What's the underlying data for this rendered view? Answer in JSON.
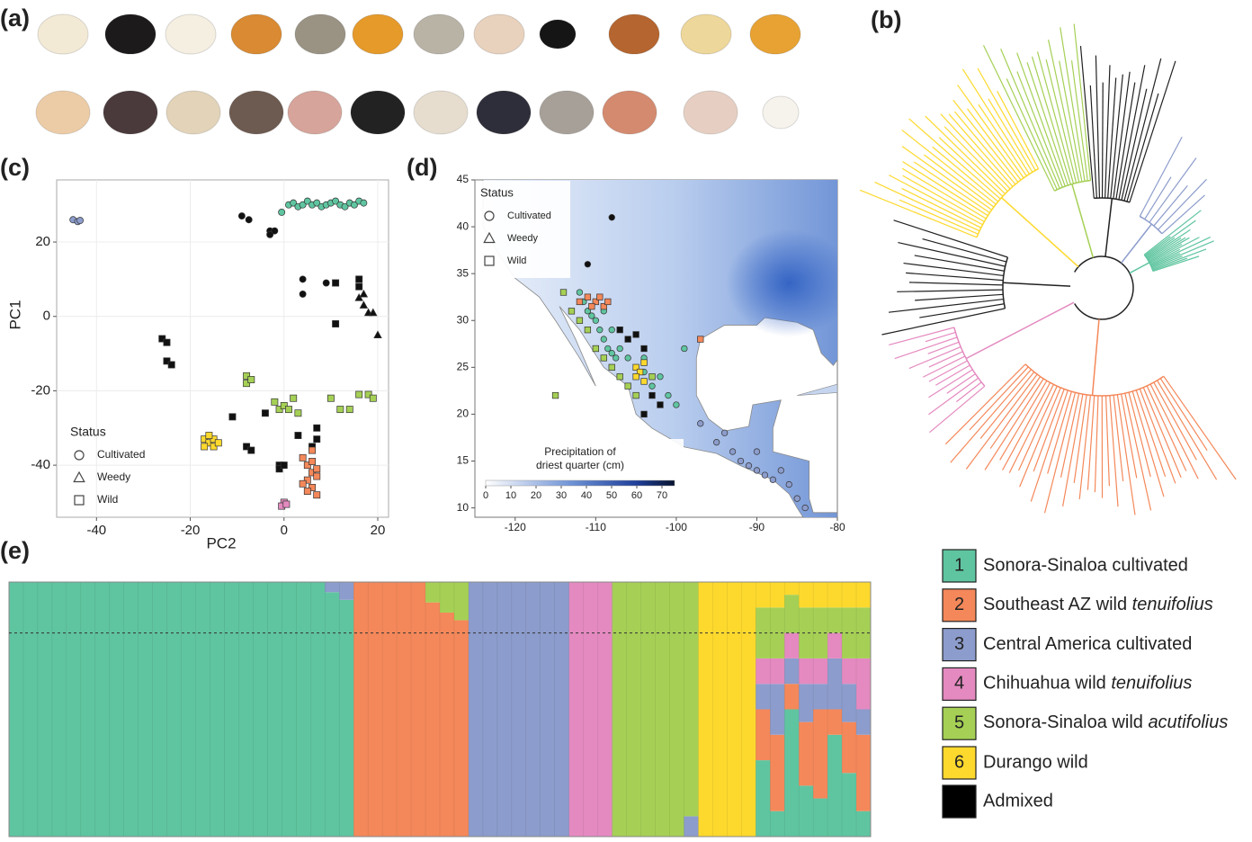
{
  "panels": [
    "(a)",
    "(b)",
    "(c)",
    "(d)",
    "(e)"
  ],
  "chart_data": [
    {
      "type": "scatter",
      "xlabel": "PC2",
      "ylabel": "PC1",
      "xlim": [
        -48.5,
        22.3
      ],
      "ylim": [
        -54,
        36.7
      ],
      "xticks": [
        -40,
        -20,
        0,
        20
      ],
      "yticks": [
        -40,
        -20,
        0,
        20
      ],
      "grid": true,
      "legend": {
        "title": "Status",
        "entries": [
          {
            "label": "Cultivated",
            "marker": "circle"
          },
          {
            "label": "Weedy",
            "marker": "triangle"
          },
          {
            "label": "Wild",
            "marker": "square"
          }
        ]
      },
      "series": [
        {
          "color": "#8c9ccc",
          "marker": "circle",
          "x": [
            -45,
            -44,
            -43.5
          ],
          "values": [
            26,
            25.5,
            25.8
          ]
        },
        {
          "color": "#5fc5a0",
          "marker": "circle",
          "x": [
            -0.5,
            1,
            2,
            3,
            4,
            5,
            6,
            7,
            8,
            9,
            10,
            11,
            12,
            13,
            14,
            15,
            16,
            17
          ],
          "values": [
            28,
            30,
            30.5,
            29.5,
            30,
            31,
            30,
            30.5,
            29.5,
            30,
            30.5,
            31,
            30,
            29.5,
            30.5,
            30,
            31,
            30.5
          ]
        },
        {
          "color": "#111111",
          "marker": "circle",
          "x": [
            -9,
            -7.5,
            -3,
            -3,
            -2,
            4,
            4,
            9
          ],
          "values": [
            27,
            26,
            23,
            22,
            23,
            10,
            6,
            9
          ]
        },
        {
          "color": "#111111",
          "marker": "square",
          "x": [
            -26,
            -25,
            -25,
            -24,
            11,
            11,
            -11,
            -8,
            -7,
            -4,
            -1,
            -1,
            0,
            3,
            6,
            7,
            7,
            16,
            16
          ],
          "values": [
            -6,
            -7,
            -12,
            -13,
            9,
            -2,
            -27,
            -35,
            -36,
            -26,
            -40,
            -41,
            -40,
            -32,
            -35,
            -30,
            -33,
            10,
            8
          ]
        },
        {
          "color": "#111111",
          "marker": "triangle",
          "x": [
            16,
            17,
            18,
            17,
            19,
            20
          ],
          "values": [
            5,
            3,
            1,
            6,
            1,
            -5
          ]
        },
        {
          "color": "#a5d055",
          "marker": "square",
          "x": [
            -8,
            -8,
            -7,
            -2,
            -1,
            0,
            1,
            2,
            3,
            10,
            12,
            14,
            16,
            18,
            19
          ],
          "values": [
            -16,
            -18,
            -17,
            -23,
            -25,
            -24,
            -25,
            -22,
            -26,
            -22,
            -25,
            -25,
            -21,
            -21,
            -22
          ]
        },
        {
          "color": "#fdd92e",
          "marker": "square",
          "x": [
            -17,
            -16,
            -15,
            -15,
            -16,
            -14,
            -17
          ],
          "values": [
            -33,
            -34,
            -33,
            -35,
            -32,
            -34,
            -35
          ]
        },
        {
          "color": "#f4885a",
          "marker": "square",
          "x": [
            4,
            5,
            6,
            5,
            6,
            7,
            5,
            7,
            6,
            4,
            6,
            7
          ],
          "values": [
            -38,
            -40,
            -42,
            -44,
            -46,
            -48,
            -47,
            -43,
            -39,
            -45,
            -36,
            -41
          ]
        },
        {
          "color": "#e48ac0",
          "marker": "square",
          "x": [
            0,
            -0.5,
            0.5
          ],
          "values": [
            -50,
            -51,
            -50.5
          ]
        }
      ]
    },
    {
      "type": "map",
      "xlim": [
        -125,
        -80
      ],
      "ylim": [
        9,
        45
      ],
      "xticks": [
        -120,
        -110,
        -100,
        -90,
        -80
      ],
      "yticks": [
        10,
        15,
        20,
        25,
        30,
        35,
        40,
        45
      ],
      "grid": false,
      "legend": {
        "title": "Status",
        "entries": [
          {
            "label": "Cultivated",
            "marker": "circle"
          },
          {
            "label": "Weedy",
            "marker": "triangle"
          },
          {
            "label": "Wild",
            "marker": "square"
          }
        ]
      },
      "colorbar": {
        "title": [
          "Precipitation of",
          "driest quarter (cm)"
        ],
        "lim": [
          0,
          75
        ],
        "ticks": [
          0,
          10,
          20,
          30,
          40,
          50,
          60,
          70
        ]
      },
      "series": [
        {
          "color": "#5fc5a0",
          "marker": "circle",
          "x": [
            -111,
            -110,
            -109.5,
            -109,
            -108.5,
            -108,
            -107.5,
            -110.5,
            -111.5,
            -112,
            -109,
            -108,
            -107,
            -106,
            -104,
            -103,
            -104,
            -102,
            -101,
            -99,
            -100
          ],
          "values": [
            31,
            30,
            29,
            28,
            27,
            26.5,
            26,
            30.5,
            32,
            33,
            31,
            29,
            27,
            26,
            24.5,
            23,
            26,
            24,
            22,
            27,
            21
          ]
        },
        {
          "color": "#8c9ccc",
          "marker": "circle",
          "x": [
            -97,
            -95,
            -93,
            -92,
            -91,
            -90,
            -89,
            -88,
            -86,
            -85,
            -84,
            -87,
            -90,
            -94
          ],
          "values": [
            19,
            17,
            16,
            15,
            14.5,
            14,
            13.5,
            13,
            12.5,
            11,
            10,
            14,
            16,
            18
          ]
        },
        {
          "color": "#111111",
          "marker": "circle",
          "x": [
            -108,
            -111
          ],
          "values": [
            41,
            36
          ]
        },
        {
          "color": "#f4885a",
          "marker": "square",
          "x": [
            -112,
            -111,
            -110,
            -109,
            -108.5,
            -109.5,
            -97,
            -110.5
          ],
          "values": [
            32,
            32.5,
            32,
            31.5,
            32,
            32.5,
            28,
            31.5
          ]
        },
        {
          "color": "#a5d055",
          "marker": "square",
          "x": [
            -111,
            -110,
            -109,
            -108,
            -107,
            -106,
            -105,
            -112,
            -113,
            -114,
            -115,
            -103
          ],
          "values": [
            29,
            27,
            26,
            25,
            24,
            23,
            22,
            30,
            31,
            33,
            22,
            24
          ]
        },
        {
          "color": "#fdd92e",
          "marker": "square",
          "x": [
            -105,
            -104.5,
            -104,
            -105,
            -104
          ],
          "values": [
            25,
            24.5,
            25.5,
            24,
            23.5
          ]
        },
        {
          "color": "#111111",
          "marker": "square",
          "x": [
            -107,
            -106,
            -104,
            -103,
            -102,
            -104,
            -105
          ],
          "values": [
            29,
            28,
            27,
            22,
            21,
            20,
            28.5
          ]
        }
      ]
    },
    {
      "type": "stacked_bar",
      "ylim": [
        0,
        1
      ],
      "threshold": 0.8,
      "series": [
        {
          "number": "1",
          "name": "Sonora-Sinaloa cultivated",
          "italic_last_word": false,
          "color": "#5fc5a0",
          "values": [
            1,
            1,
            1,
            1,
            1,
            1,
            1,
            1,
            1,
            1,
            1,
            1,
            1,
            1,
            1,
            1,
            1,
            1,
            1,
            1,
            1,
            1,
            0.96,
            0.93,
            0,
            0,
            0,
            0,
            0,
            0,
            0,
            0,
            0,
            0,
            0,
            0,
            0,
            0,
            0,
            0,
            0,
            0,
            0,
            0,
            0,
            0,
            0,
            0,
            0,
            0,
            0,
            0,
            0.3,
            0.1,
            0.5,
            0.2,
            0.15,
            0.4,
            0.25,
            0.1
          ]
        },
        {
          "number": "2",
          "name": "Southeast AZ wild tenuifolius",
          "italic_last_word": true,
          "color": "#f4885a",
          "values": [
            0,
            0,
            0,
            0,
            0,
            0,
            0,
            0,
            0,
            0,
            0,
            0,
            0,
            0,
            0,
            0,
            0,
            0,
            0,
            0,
            0,
            0,
            0,
            0,
            1,
            1,
            1,
            1,
            1,
            0.92,
            0.88,
            0.85,
            0,
            0,
            0,
            0,
            0,
            0,
            0,
            0,
            0,
            0,
            0,
            0,
            0,
            0,
            0,
            0,
            0,
            0,
            0,
            0,
            0.2,
            0.3,
            0.1,
            0.25,
            0.35,
            0.1,
            0.2,
            0.3
          ]
        },
        {
          "number": "3",
          "name": "Central America cultivated",
          "italic_last_word": false,
          "color": "#8c9ccc",
          "values": [
            0,
            0,
            0,
            0,
            0,
            0,
            0,
            0,
            0,
            0,
            0,
            0,
            0,
            0,
            0,
            0,
            0,
            0,
            0,
            0,
            0,
            0,
            0.04,
            0.07,
            0,
            0,
            0,
            0,
            0,
            0,
            0,
            0,
            1,
            1,
            1,
            1,
            1,
            1,
            1,
            0,
            0,
            0,
            0,
            0,
            0,
            0,
            0,
            0.08,
            0,
            0,
            0,
            0,
            0.1,
            0.2,
            0.1,
            0.15,
            0.1,
            0.2,
            0.15,
            0.1
          ]
        },
        {
          "number": "4",
          "name": "Chihuahua wild tenuifolius",
          "italic_last_word": true,
          "color": "#e48ac0",
          "values": [
            0,
            0,
            0,
            0,
            0,
            0,
            0,
            0,
            0,
            0,
            0,
            0,
            0,
            0,
            0,
            0,
            0,
            0,
            0,
            0,
            0,
            0,
            0,
            0,
            0,
            0,
            0,
            0,
            0,
            0,
            0,
            0,
            0,
            0,
            0,
            0,
            0,
            0,
            0,
            1,
            1,
            1,
            0,
            0,
            0,
            0,
            0,
            0,
            0,
            0,
            0,
            0,
            0.1,
            0.1,
            0.1,
            0.1,
            0.1,
            0.1,
            0.1,
            0.2
          ]
        },
        {
          "number": "5",
          "name": "Sonora-Sinaloa wild acutifolius",
          "italic_last_word": true,
          "color": "#a5d055",
          "values": [
            0,
            0,
            0,
            0,
            0,
            0,
            0,
            0,
            0,
            0,
            0,
            0,
            0,
            0,
            0,
            0,
            0,
            0,
            0,
            0,
            0,
            0,
            0,
            0,
            0,
            0,
            0,
            0,
            0,
            0.08,
            0.12,
            0.15,
            0,
            0,
            0,
            0,
            0,
            0,
            0,
            0,
            0,
            0,
            1,
            1,
            1,
            1,
            1,
            0.92,
            0,
            0,
            0,
            0,
            0.2,
            0.2,
            0.15,
            0.2,
            0.2,
            0.1,
            0.2,
            0.2
          ]
        },
        {
          "number": "6",
          "name": "Durango wild",
          "italic_last_word": false,
          "color": "#fdd92e",
          "values": [
            0,
            0,
            0,
            0,
            0,
            0,
            0,
            0,
            0,
            0,
            0,
            0,
            0,
            0,
            0,
            0,
            0,
            0,
            0,
            0,
            0,
            0,
            0,
            0,
            0,
            0,
            0,
            0,
            0,
            0,
            0,
            0,
            0,
            0,
            0,
            0,
            0,
            0,
            0,
            0,
            0,
            0,
            0,
            0,
            0,
            0,
            0,
            0,
            1,
            1,
            1,
            1,
            0.1,
            0.1,
            0.05,
            0.1,
            0.1,
            0.1,
            0.1,
            0.1
          ]
        }
      ],
      "admixed": {
        "name": "Admixed",
        "color": "#000000"
      }
    }
  ]
}
